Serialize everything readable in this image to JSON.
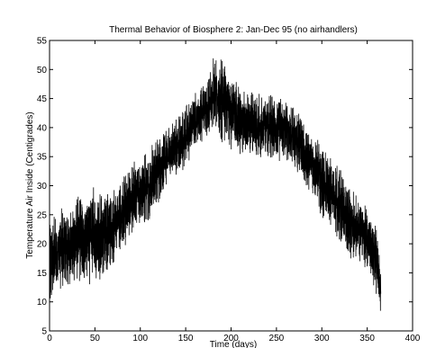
{
  "chart_data": {
    "type": "line",
    "title": "Thermal Behavior of Biosphere 2: Jan-Dec 95 (no airhandlers)",
    "xlabel": "Time (days)",
    "ylabel": "Temperature Air Inside (Centigrades)",
    "xlim": [
      0,
      400
    ],
    "ylim": [
      5,
      55
    ],
    "xticks": [
      0,
      50,
      100,
      150,
      200,
      250,
      300,
      350,
      400
    ],
    "yticks": [
      5,
      10,
      15,
      20,
      25,
      30,
      35,
      40,
      45,
      50,
      55
    ],
    "grid": false,
    "legend": "none",
    "series": [
      {
        "color": "#000000",
        "x_range": [
          0,
          365
        ],
        "envelope": {
          "days": [
            0,
            10,
            20,
            30,
            40,
            50,
            60,
            70,
            80,
            90,
            100,
            110,
            120,
            130,
            140,
            150,
            160,
            170,
            180,
            190,
            200,
            210,
            220,
            230,
            240,
            250,
            260,
            270,
            280,
            290,
            300,
            310,
            320,
            330,
            340,
            350,
            360,
            365
          ],
          "min": [
            9,
            12,
            12,
            13,
            13,
            13,
            14,
            16,
            19,
            21,
            23,
            24,
            27,
            30,
            31,
            33,
            36,
            38,
            39,
            37,
            36,
            35,
            35,
            34,
            35,
            34,
            34,
            33,
            30,
            28,
            24,
            23,
            20,
            17,
            16,
            15,
            11,
            7
          ],
          "max": [
            24,
            26,
            27,
            28,
            29,
            30,
            29,
            30,
            31,
            34,
            35,
            37,
            39,
            40,
            42,
            44,
            46,
            48,
            52,
            53,
            49,
            48,
            47,
            46,
            46,
            46,
            45,
            44,
            42,
            39,
            37,
            35,
            33,
            30,
            28,
            27,
            23,
            17
          ]
        }
      }
    ]
  }
}
